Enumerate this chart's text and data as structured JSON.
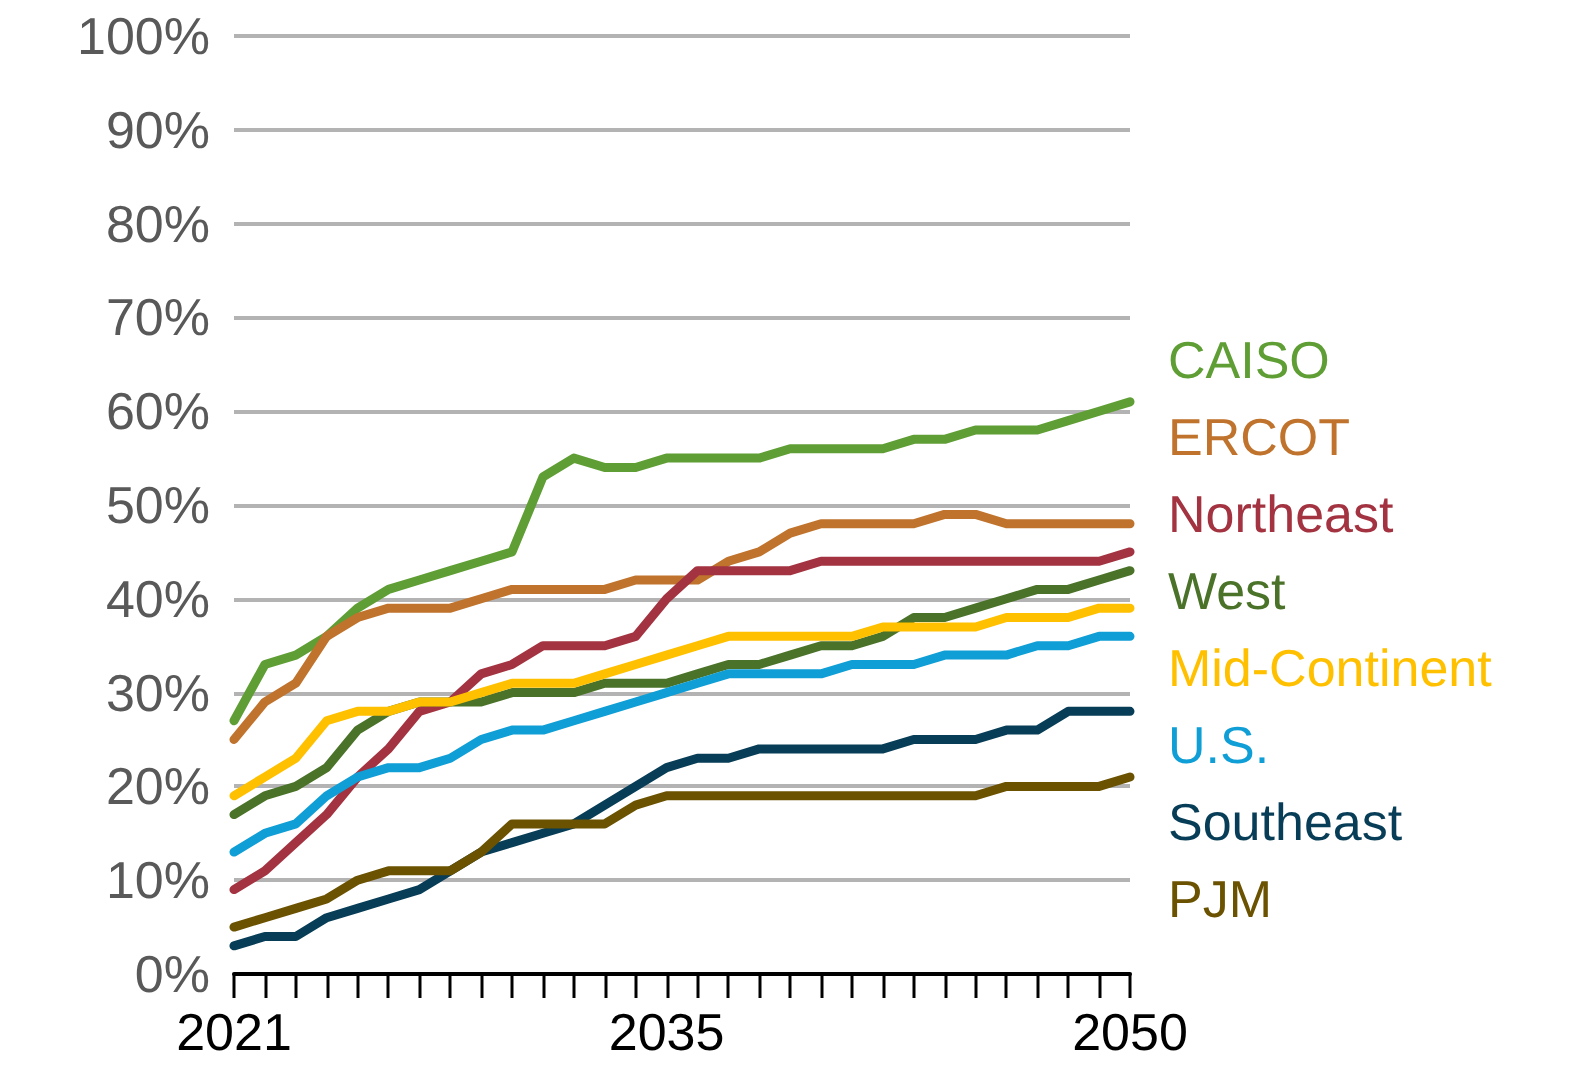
{
  "chart_data": {
    "type": "line",
    "categories": [
      "2021",
      null,
      null,
      null,
      null,
      null,
      null,
      null,
      null,
      null,
      null,
      null,
      null,
      null,
      "2035",
      null,
      null,
      null,
      null,
      null,
      null,
      null,
      null,
      null,
      null,
      null,
      null,
      null,
      null,
      "2050"
    ],
    "ylim": [
      0,
      100
    ],
    "yticks": [
      {
        "value": 0,
        "label": "0%"
      },
      {
        "value": 10,
        "label": "10%"
      },
      {
        "value": 20,
        "label": "20%"
      },
      {
        "value": 30,
        "label": "30%"
      },
      {
        "value": 40,
        "label": "40%"
      },
      {
        "value": 50,
        "label": "50%"
      },
      {
        "value": 60,
        "label": "60%"
      },
      {
        "value": 70,
        "label": "70%"
      },
      {
        "value": 80,
        "label": "80%"
      },
      {
        "value": 90,
        "label": "90%"
      },
      {
        "value": 100,
        "label": "100%"
      }
    ],
    "grid": "y",
    "legend": false,
    "marker": "none",
    "line_style": "solid",
    "series": [
      {
        "name": "CAISO",
        "color": "#5f9e34",
        "values": [
          27,
          33,
          34,
          36,
          39,
          41,
          42,
          43,
          44,
          45,
          53,
          55,
          54,
          54,
          55,
          55,
          55,
          55,
          56,
          56,
          56,
          56,
          57,
          57,
          58,
          58,
          58,
          59,
          60,
          61
        ]
      },
      {
        "name": "ERCOT",
        "color": "#c0732c",
        "values": [
          25,
          29,
          31,
          36,
          38,
          39,
          39,
          39,
          40,
          41,
          41,
          41,
          41,
          42,
          42,
          42,
          44,
          45,
          47,
          48,
          48,
          48,
          48,
          49,
          49,
          48,
          48,
          48,
          48,
          48
        ]
      },
      {
        "name": "Northeast",
        "color": "#a33340",
        "values": [
          9,
          11,
          14,
          17,
          21,
          24,
          28,
          29,
          32,
          33,
          35,
          35,
          35,
          36,
          40,
          43,
          43,
          43,
          43,
          44,
          44,
          44,
          44,
          44,
          44,
          44,
          44,
          44,
          44,
          45
        ]
      },
      {
        "name": "West",
        "color": "#4a7229",
        "values": [
          17,
          19,
          20,
          22,
          26,
          28,
          29,
          29,
          29,
          30,
          30,
          30,
          31,
          31,
          31,
          32,
          33,
          33,
          34,
          35,
          35,
          36,
          38,
          38,
          39,
          40,
          41,
          41,
          42,
          43
        ]
      },
      {
        "name": "Mid-Continent",
        "color": "#ffc000",
        "values": [
          19,
          21,
          23,
          27,
          28,
          28,
          29,
          29,
          30,
          31,
          31,
          31,
          32,
          33,
          34,
          35,
          36,
          36,
          36,
          36,
          36,
          37,
          37,
          37,
          37,
          38,
          38,
          38,
          39,
          39
        ]
      },
      {
        "name": "U.S.",
        "color": "#0f9ed5",
        "values": [
          13,
          15,
          16,
          19,
          21,
          22,
          22,
          23,
          25,
          26,
          26,
          27,
          28,
          29,
          30,
          31,
          32,
          32,
          32,
          32,
          33,
          33,
          33,
          34,
          34,
          34,
          35,
          35,
          36,
          36
        ]
      },
      {
        "name": "Southeast",
        "color": "#073d56",
        "values": [
          3,
          4,
          4,
          6,
          7,
          8,
          9,
          11,
          13,
          14,
          15,
          16,
          18,
          20,
          22,
          23,
          23,
          24,
          24,
          24,
          24,
          24,
          25,
          25,
          25,
          26,
          26,
          28,
          28,
          28
        ]
      },
      {
        "name": "PJM",
        "color": "#6b5200",
        "values": [
          5,
          6,
          7,
          8,
          10,
          11,
          11,
          11,
          13,
          16,
          16,
          16,
          16,
          18,
          19,
          19,
          19,
          19,
          19,
          19,
          19,
          19,
          19,
          19,
          19,
          20,
          20,
          20,
          20,
          21
        ]
      }
    ]
  }
}
